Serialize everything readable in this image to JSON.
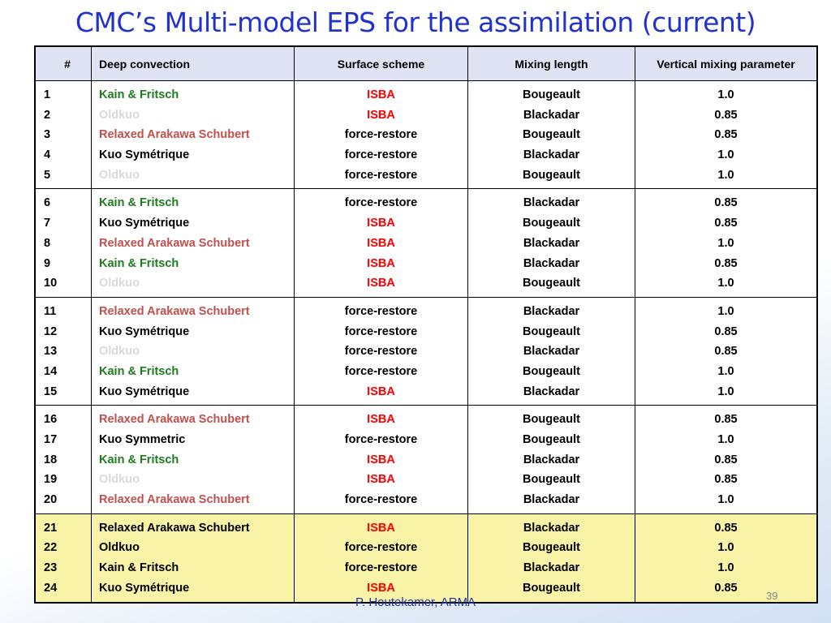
{
  "header": {
    "title": "CMC’s Multi-model EPS for the assimilation (current)"
  },
  "table": {
    "columns": [
      "#",
      "Deep convection",
      "Surface scheme",
      "Mixing length",
      "Vertical mixing parameter"
    ],
    "groups": [
      {
        "highlight": false,
        "rows": [
          {
            "cells": [
              "1",
              "Kain & Fritsch",
              "ISBA",
              "Bougeault",
              "1.0"
            ],
            "conv_color": "#1e7b1e",
            "surf_color": "#ff0000"
          },
          {
            "cells": [
              "2",
              "Oldkuo",
              "ISBA",
              "Blackadar",
              "0.85"
            ],
            "conv_color": "#d9d9d9",
            "surf_color": "#ff0000"
          },
          {
            "cells": [
              "3",
              "Relaxed Arakawa Schubert",
              "force-restore",
              "Bougeault",
              "0.85"
            ],
            "conv_color": "#c0504d",
            "surf_color": "#000000"
          },
          {
            "cells": [
              "4",
              "Kuo Symétrique",
              "force-restore",
              "Blackadar",
              "1.0"
            ],
            "conv_color": "#000000",
            "surf_color": "#000000"
          },
          {
            "cells": [
              "5",
              "Oldkuo",
              "force-restore",
              "Bougeault",
              "1.0"
            ],
            "conv_color": "#d9d9d9",
            "surf_color": "#000000"
          }
        ]
      },
      {
        "highlight": false,
        "rows": [
          {
            "cells": [
              "6",
              "Kain & Fritsch",
              "force-restore",
              "Blackadar",
              "0.85"
            ],
            "conv_color": "#1e7b1e",
            "surf_color": "#000000"
          },
          {
            "cells": [
              "7",
              "Kuo Symétrique",
              "ISBA",
              "Bougeault",
              "0.85"
            ],
            "conv_color": "#000000",
            "surf_color": "#ff0000"
          },
          {
            "cells": [
              "8",
              "Relaxed Arakawa Schubert",
              "ISBA",
              "Blackadar",
              "1.0"
            ],
            "conv_color": "#c0504d",
            "surf_color": "#ff0000"
          },
          {
            "cells": [
              "9",
              "Kain & Fritsch",
              "ISBA",
              "Blackadar",
              "0.85"
            ],
            "conv_color": "#1e7b1e",
            "surf_color": "#ff0000"
          },
          {
            "cells": [
              "10",
              "Oldkuo",
              "ISBA",
              "Bougeault",
              "1.0"
            ],
            "conv_color": "#d9d9d9",
            "surf_color": "#ff0000"
          }
        ]
      },
      {
        "highlight": false,
        "rows": [
          {
            "cells": [
              "11",
              "Relaxed Arakawa Schubert",
              "force-restore",
              "Blackadar",
              "1.0"
            ],
            "conv_color": "#c0504d",
            "surf_color": "#000000"
          },
          {
            "cells": [
              "12",
              "Kuo Symétrique",
              "force-restore",
              "Bougeault",
              "0.85"
            ],
            "conv_color": "#000000",
            "surf_color": "#000000"
          },
          {
            "cells": [
              "13",
              "Oldkuo",
              "force-restore",
              "Blackadar",
              "0.85"
            ],
            "conv_color": "#d9d9d9",
            "surf_color": "#000000"
          },
          {
            "cells": [
              "14",
              "Kain & Fritsch",
              "force-restore",
              "Bougeault",
              "1.0"
            ],
            "conv_color": "#1e7b1e",
            "surf_color": "#000000"
          },
          {
            "cells": [
              "15",
              "Kuo Symétrique",
              "ISBA",
              "Blackadar",
              "1.0"
            ],
            "conv_color": "#000000",
            "surf_color": "#ff0000"
          }
        ]
      },
      {
        "highlight": false,
        "rows": [
          {
            "cells": [
              "16",
              "Relaxed Arakawa Schubert",
              "ISBA",
              "Bougeault",
              "0.85"
            ],
            "conv_color": "#c0504d",
            "surf_color": "#ff0000"
          },
          {
            "cells": [
              "17",
              "Kuo Symmetric",
              "force-restore",
              "Bougeault",
              "1.0"
            ],
            "conv_color": "#000000",
            "surf_color": "#000000"
          },
          {
            "cells": [
              "18",
              "Kain & Fritsch",
              "ISBA",
              "Blackadar",
              "0.85"
            ],
            "conv_color": "#1e7b1e",
            "surf_color": "#ff0000"
          },
          {
            "cells": [
              "19",
              "Oldkuo",
              "ISBA",
              "Bougeault",
              "0.85"
            ],
            "conv_color": "#d9d9d9",
            "surf_color": "#ff0000"
          },
          {
            "cells": [
              "20",
              "Relaxed Arakawa Schubert",
              "force-restore",
              "Blackadar",
              "1.0"
            ],
            "conv_color": "#c0504d",
            "surf_color": "#000000"
          }
        ]
      },
      {
        "highlight": true,
        "rows": [
          {
            "cells": [
              "21",
              "Relaxed Arakawa Schubert",
              "ISBA",
              "Blackadar",
              "0.85"
            ],
            "conv_color": "#000000",
            "surf_color": "#ff0000"
          },
          {
            "cells": [
              "22",
              "Oldkuo",
              "force-restore",
              "Bougeault",
              "1.0"
            ],
            "conv_color": "#000000",
            "surf_color": "#000000"
          },
          {
            "cells": [
              "23",
              "Kain & Fritsch",
              "force-restore",
              "Blackadar",
              "1.0"
            ],
            "conv_color": "#000000",
            "surf_color": "#000000"
          },
          {
            "cells": [
              "24",
              "Kuo Symétrique",
              "ISBA",
              "Bougeault",
              "0.85"
            ],
            "conv_color": "#000000",
            "surf_color": "#ff0000"
          }
        ]
      }
    ]
  },
  "footer": {
    "author": "P. Houtekamer, ARMA",
    "page": "39"
  }
}
